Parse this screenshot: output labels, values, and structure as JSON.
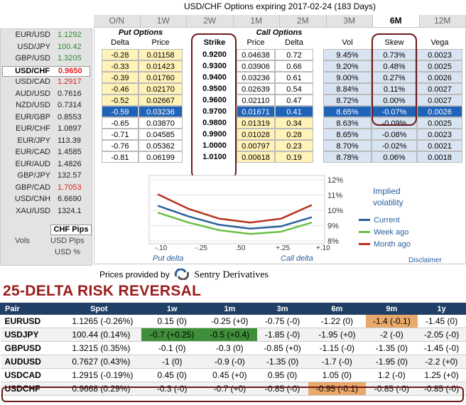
{
  "title": "USD/CHF Options expiring 2017-02-24 (183 Days)",
  "tabs": [
    "O/N",
    "1W",
    "2W",
    "1M",
    "2M",
    "3M",
    "6M",
    "12M"
  ],
  "active_tab": "6M",
  "pairs": [
    {
      "name": "EUR/USD",
      "value": "1.1292",
      "color": "#2e8b2e"
    },
    {
      "name": "USD/JPY",
      "value": "100.42",
      "color": "#2e8b2e"
    },
    {
      "name": "GBP/USD",
      "value": "1.3205",
      "color": "#2e8b2e"
    },
    {
      "name": "USD/CHF",
      "value": "0.9650",
      "color": "#e02020"
    },
    {
      "name": "USD/CAD",
      "value": "1.2917",
      "color": "#e02020"
    },
    {
      "name": "AUD/USD",
      "value": "0.7616",
      "color": "#222"
    },
    {
      "name": "NZD/USD",
      "value": "0.7314",
      "color": "#222"
    },
    {
      "name": "EUR/GBP",
      "value": "0.8553",
      "color": "#222"
    },
    {
      "name": "EUR/CHF",
      "value": "1.0897",
      "color": "#222"
    },
    {
      "name": "EUR/JPY",
      "value": "113.39",
      "color": "#222"
    },
    {
      "name": "EUR/CAD",
      "value": "1.4585",
      "color": "#222"
    },
    {
      "name": "EUR/AUD",
      "value": "1.4826",
      "color": "#222"
    },
    {
      "name": "GBP/JPY",
      "value": "132.57",
      "color": "#222"
    },
    {
      "name": "GBP/CAD",
      "value": "1.7053",
      "color": "#e02020"
    },
    {
      "name": "USD/CNH",
      "value": "6.6690",
      "color": "#222"
    },
    {
      "name": "XAU/USD",
      "value": "1324.1",
      "color": "#222"
    }
  ],
  "selected_pair": "USD/CHF",
  "vols_label": "Vols",
  "vols_options": [
    "CHF Pips",
    "USD Pips",
    "USD %"
  ],
  "headers": {
    "put": "Put Options",
    "call": "Call Options",
    "delta": "Delta",
    "price": "Price",
    "strike": "Strike",
    "vol": "Vol",
    "skew": "Skew",
    "vega": "Vega"
  },
  "rows": [
    {
      "pd": "-0.28",
      "pp": "0.01158",
      "k": "0.9200",
      "cp": "0.04638",
      "cd": "0.72",
      "vol": "9.45%",
      "skew": "0.73%",
      "vega": "0.0023"
    },
    {
      "pd": "-0.33",
      "pp": "0.01423",
      "k": "0.9300",
      "cp": "0.03906",
      "cd": "0.66",
      "vol": "9.20%",
      "skew": "0.48%",
      "vega": "0.0025"
    },
    {
      "pd": "-0.39",
      "pp": "0.01760",
      "k": "0.9400",
      "cp": "0.03236",
      "cd": "0.61",
      "vol": "9.00%",
      "skew": "0.27%",
      "vega": "0.0026"
    },
    {
      "pd": "-0.46",
      "pp": "0.02170",
      "k": "0.9500",
      "cp": "0.02639",
      "cd": "0.54",
      "vol": "8.84%",
      "skew": "0.11%",
      "vega": "0.0027"
    },
    {
      "pd": "-0.52",
      "pp": "0.02667",
      "k": "0.9600",
      "cp": "0.02110",
      "cd": "0.47",
      "vol": "8.72%",
      "skew": "0.00%",
      "vega": "0.0027"
    },
    {
      "pd": "-0.59",
      "pp": "0.03236",
      "k": "0.9700",
      "cp": "0.01671",
      "cd": "0.41",
      "vol": "8.65%",
      "skew": "-0.07%",
      "vega": "0.0026"
    },
    {
      "pd": "-0.65",
      "pp": "0.03870",
      "k": "0.9800",
      "cp": "0.01319",
      "cd": "0.34",
      "vol": "8.63%",
      "skew": "-0.09%",
      "vega": "0.0025"
    },
    {
      "pd": "-0.71",
      "pp": "0.04585",
      "k": "0.9900",
      "cp": "0.01028",
      "cd": "0.28",
      "vol": "8.65%",
      "skew": "-0.08%",
      "vega": "0.0023"
    },
    {
      "pd": "-0.76",
      "pp": "0.05362",
      "k": "1.0000",
      "cp": "0.00797",
      "cd": "0.23",
      "vol": "8.70%",
      "skew": "-0.02%",
      "vega": "0.0021"
    },
    {
      "pd": "-0.81",
      "pp": "0.06199",
      "k": "1.0100",
      "cp": "0.00618",
      "cd": "0.19",
      "vol": "8.78%",
      "skew": "0.06%",
      "vega": "0.0018"
    }
  ],
  "chart_data": {
    "type": "line",
    "x_ticks": [
      "-.10",
      "-.25",
      ".50",
      "+.25",
      "+.10"
    ],
    "y_ticks": [
      "12%",
      "11%",
      "10%",
      "9%",
      "8%"
    ],
    "ylim": [
      8,
      12
    ],
    "xlabel_left": "Put delta",
    "xlabel_right": "Call delta",
    "title": "Implied volatility",
    "series": [
      {
        "name": "Current",
        "color": "#2a5f9e",
        "values": [
          10.3,
          9.6,
          9.05,
          8.8,
          8.95,
          9.55
        ]
      },
      {
        "name": "Week ago",
        "color": "#6cbf45",
        "values": [
          9.85,
          9.2,
          8.7,
          8.45,
          8.6,
          9.2
        ]
      },
      {
        "name": "Month ago",
        "color": "#b8321e",
        "values": [
          11.05,
          10.1,
          9.45,
          9.2,
          9.45,
          10.35
        ]
      }
    ]
  },
  "disclaimer": "Disclaimer",
  "provider": {
    "prefix": "Prices provided by",
    "name": "Sentry Derivatives"
  },
  "rr": {
    "title": "25-DELTA RISK REVERSAL",
    "columns": [
      "Pair",
      "Spot",
      "1w",
      "1m",
      "3m",
      "6m",
      "9m",
      "1y"
    ],
    "rows": [
      {
        "pair": "EURUSD",
        "spot": "1.1265 (-0.26%)",
        "vals": [
          "0.15 (0)",
          "-0.25 (+0)",
          "-0.75 (-0)",
          "-1.22 (0)",
          "-1.4 (-0.1)",
          "-1.45 (0)"
        ],
        "hl": [
          "",
          "",
          "",
          "",
          "o",
          ""
        ]
      },
      {
        "pair": "USDJPY",
        "spot": "100.44 (0.14%)",
        "vals": [
          "-0.7 (+0.25)",
          "-0.5 (+0.4)",
          "-1.85 (-0)",
          "-1.95 (+0)",
          "-2 (-0)",
          "-2.05 (-0)"
        ],
        "hl": [
          "g",
          "g",
          "",
          "",
          "",
          ""
        ]
      },
      {
        "pair": "GBPUSD",
        "spot": "1.3215 (0.35%)",
        "vals": [
          "-0.1 (0)",
          "-0.3 (0)",
          "-0.85 (+0)",
          "-1.15 (-0)",
          "-1.35 (0)",
          "-1.45 (-0)"
        ],
        "hl": [
          "",
          "",
          "",
          "",
          "",
          ""
        ]
      },
      {
        "pair": "AUDUSD",
        "spot": "0.7627 (0.43%)",
        "vals": [
          "-1 (0)",
          "-0.9 (-0)",
          "-1.35 (0)",
          "-1.7 (-0)",
          "-1.95 (0)",
          "-2.2 (+0)"
        ],
        "hl": [
          "",
          "",
          "",
          "",
          "",
          ""
        ]
      },
      {
        "pair": "USDCAD",
        "spot": "1.2915 (-0.19%)",
        "vals": [
          "0.45 (0)",
          "0.45 (+0)",
          "0.95 (0)",
          "1.05 (0)",
          "1.2 (-0)",
          "1.25 (+0)"
        ],
        "hl": [
          "",
          "",
          "",
          "",
          "",
          ""
        ]
      },
      {
        "pair": "USDCHF",
        "spot": "0.9668 (0.29%)",
        "vals": [
          "-0.3 (-0)",
          "-0.7 (+0)",
          "-0.85 (-0)",
          "-0.95 (-0.1)",
          "-0.85 (-0)",
          "-0.85 (-0)"
        ],
        "hl": [
          "",
          "",
          "",
          "o",
          "",
          ""
        ]
      }
    ]
  }
}
